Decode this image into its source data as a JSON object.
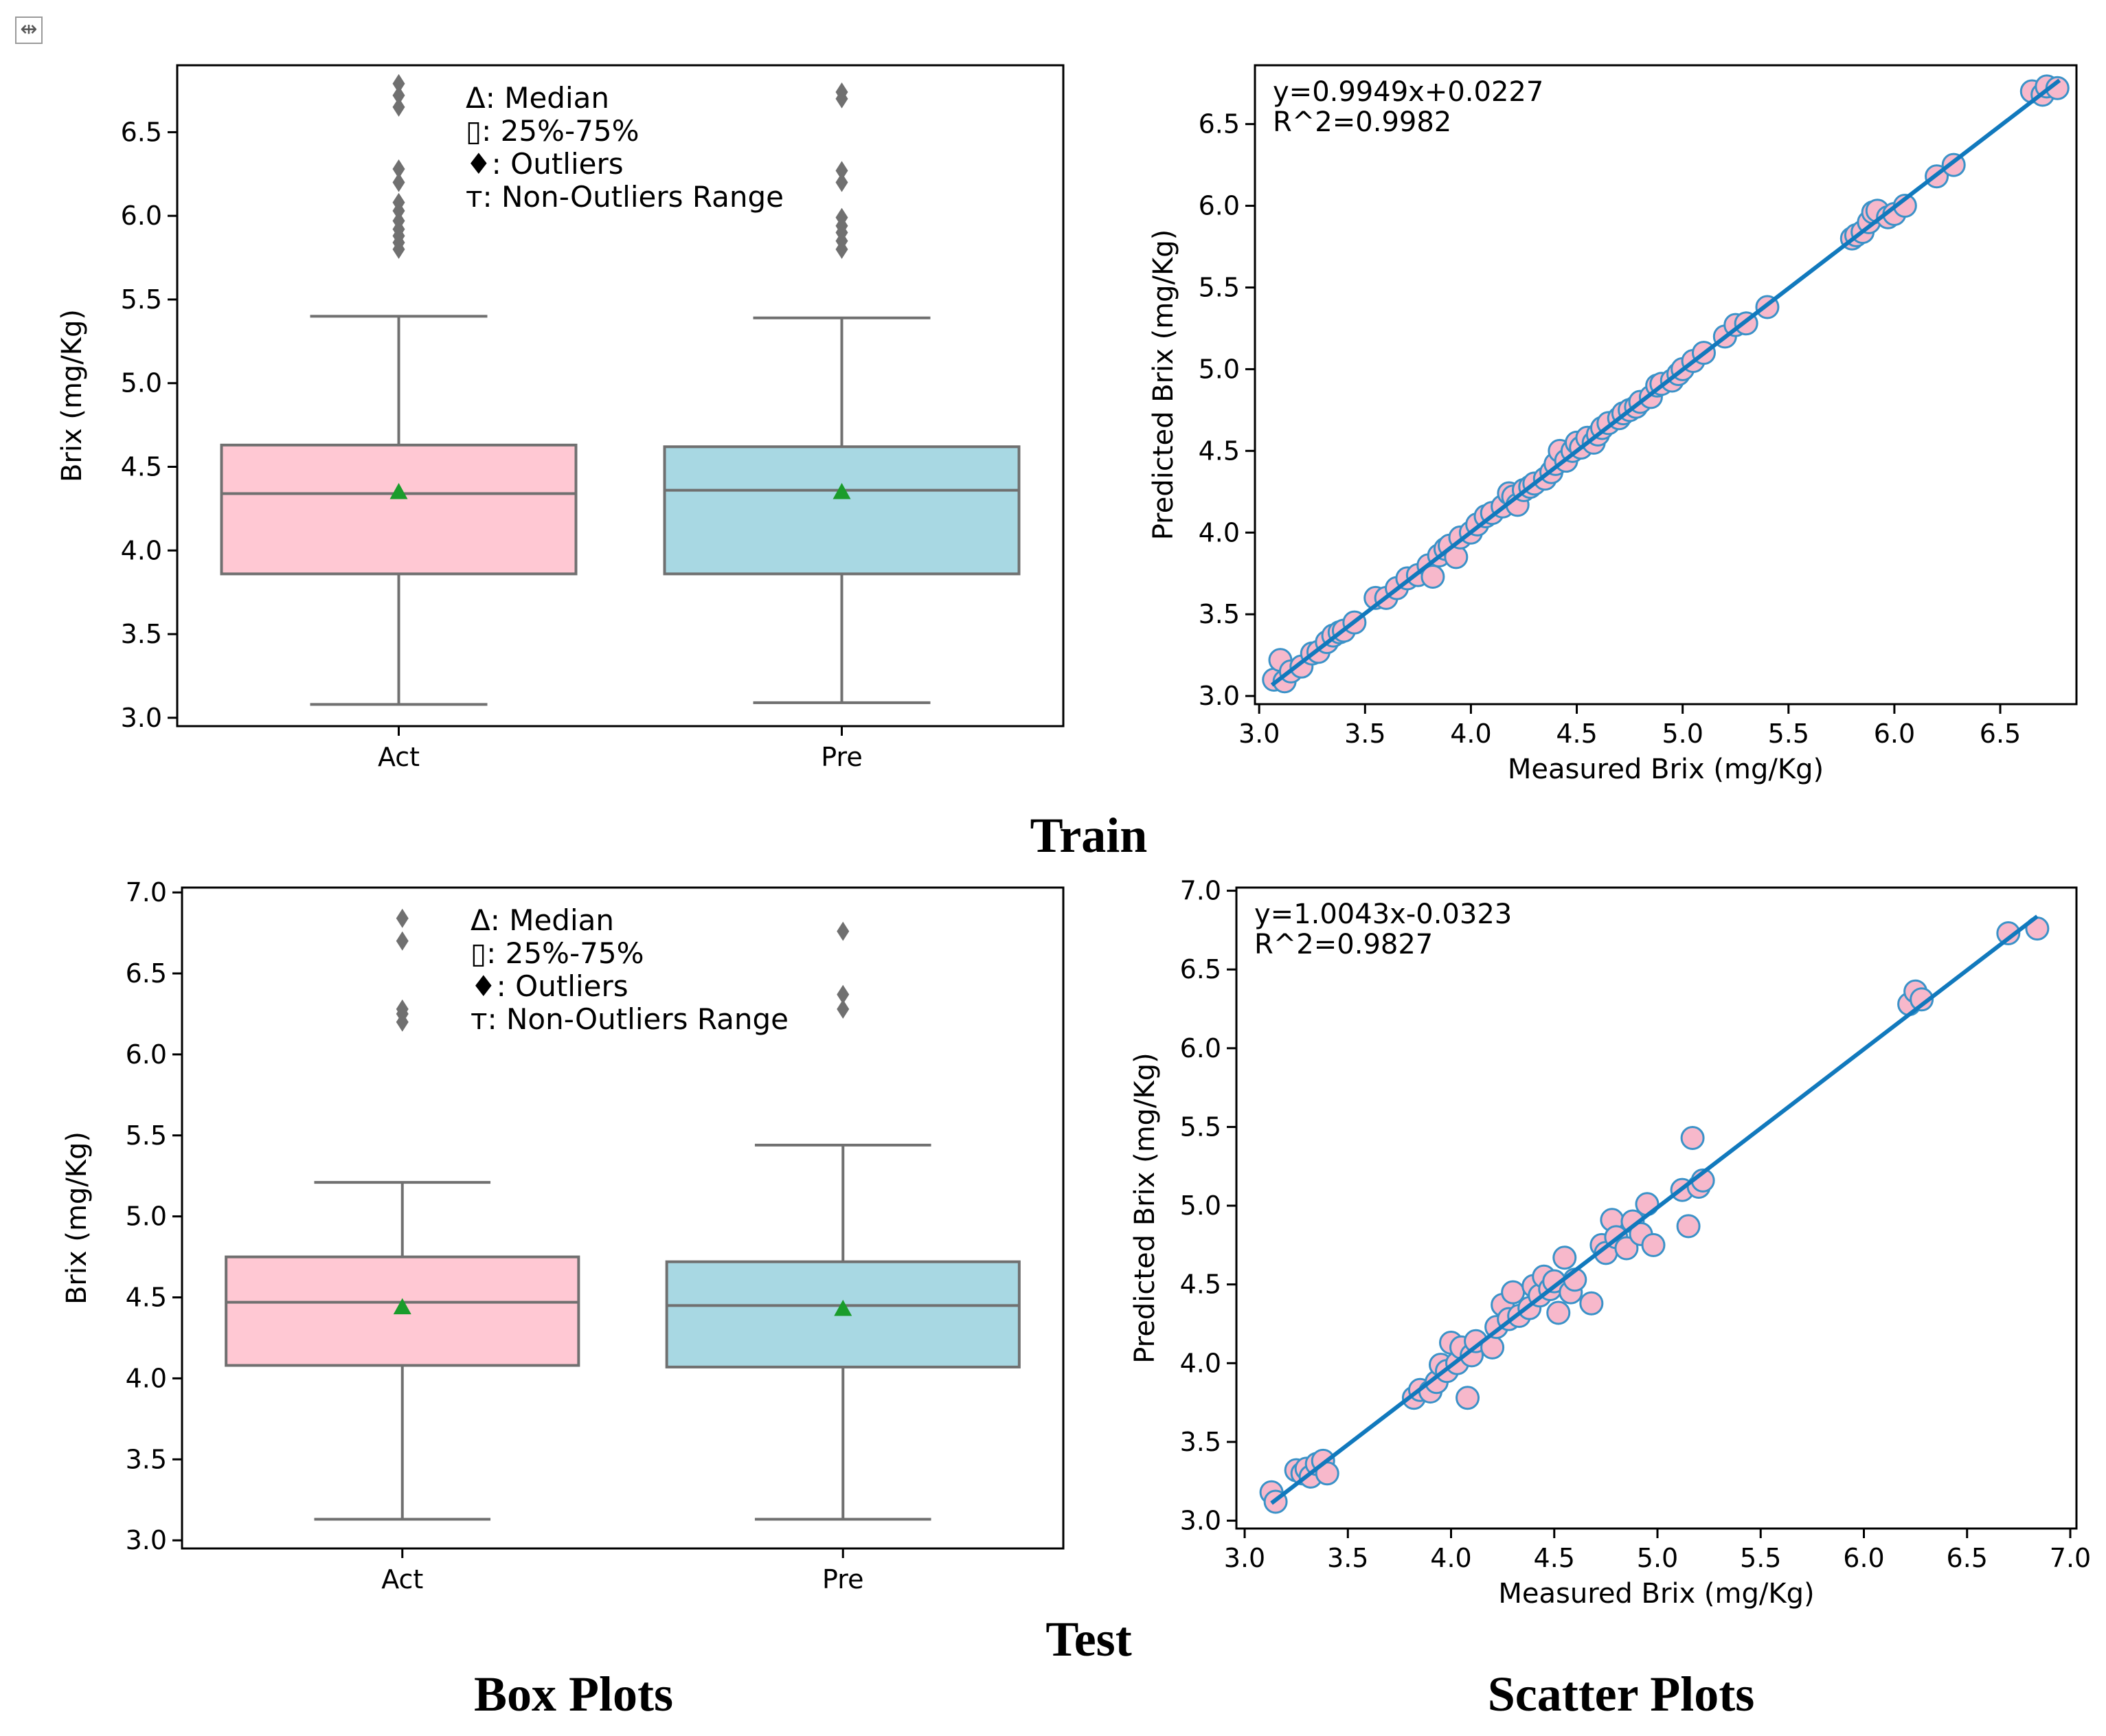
{
  "colors": {
    "act_box": "#ffc8d3",
    "pre_box": "#a8d8e3",
    "box_edge": "#707070",
    "mean_marker": "#1a9c2b",
    "outlier": "#707070",
    "point_fill": "#f7b8cb",
    "point_edge": "#3a92c8",
    "fit_line": "#1179bd"
  },
  "icons": {
    "move_handle": "move-icon"
  },
  "captions": {
    "train": "Train",
    "test": "Test",
    "box_plots": "Box Plots",
    "scatter_plots": "Scatter Plots"
  },
  "chart_data": [
    {
      "id": "train_box",
      "type": "box",
      "ylabel": "Brix (mg/Kg)",
      "ylim": [
        2.95,
        6.9
      ],
      "yticks": [
        "3.0",
        "3.5",
        "4.0",
        "4.5",
        "5.0",
        "5.5",
        "6.0",
        "6.5"
      ],
      "categories": [
        "Act",
        "Pre"
      ],
      "boxes": [
        {
          "label": "Act",
          "whisker_low": 3.08,
          "q1": 3.86,
          "median": 4.34,
          "mean": 4.35,
          "q3": 4.63,
          "whisker_high": 5.4,
          "outliers": [
            5.8,
            5.84,
            5.88,
            5.92,
            5.97,
            6.03,
            6.08,
            6.2,
            6.28,
            6.65,
            6.72,
            6.79
          ]
        },
        {
          "label": "Pre",
          "whisker_low": 3.09,
          "q1": 3.86,
          "median": 4.36,
          "mean": 4.35,
          "q3": 4.62,
          "whisker_high": 5.39,
          "outliers": [
            5.8,
            5.85,
            5.9,
            5.94,
            5.99,
            6.2,
            6.27,
            6.7,
            6.74
          ]
        }
      ],
      "legend": [
        "Δ: Median",
        "▯: 25%-75%",
        "♦: Outliers",
        "ᴛ: Non-Outliers Range"
      ]
    },
    {
      "id": "train_scatter",
      "type": "scatter",
      "xlabel": "Measured Brix (mg/Kg)",
      "ylabel": "Predicted Brix (mg/Kg)",
      "xlim": [
        2.98,
        6.86
      ],
      "ylim": [
        2.95,
        6.86
      ],
      "xticks": [
        "3.0",
        "3.5",
        "4.0",
        "4.5",
        "5.0",
        "5.5",
        "6.0",
        "6.5"
      ],
      "yticks": [
        "3.0",
        "3.5",
        "4.0",
        "4.5",
        "5.0",
        "5.5",
        "6.0",
        "6.5"
      ],
      "fit": {
        "slope": 0.9949,
        "intercept": 0.0227,
        "x_range": [
          3.06,
          6.78
        ]
      },
      "equation": "y=0.9949x+0.0227",
      "r2_text": "R^2=0.9982",
      "points": [
        [
          3.07,
          3.1
        ],
        [
          3.1,
          3.22
        ],
        [
          3.12,
          3.09
        ],
        [
          3.15,
          3.15
        ],
        [
          3.2,
          3.18
        ],
        [
          3.25,
          3.26
        ],
        [
          3.28,
          3.27
        ],
        [
          3.32,
          3.33
        ],
        [
          3.35,
          3.37
        ],
        [
          3.38,
          3.39
        ],
        [
          3.4,
          3.4
        ],
        [
          3.45,
          3.45
        ],
        [
          3.55,
          3.6
        ],
        [
          3.6,
          3.6
        ],
        [
          3.65,
          3.66
        ],
        [
          3.7,
          3.72
        ],
        [
          3.75,
          3.74
        ],
        [
          3.8,
          3.8
        ],
        [
          3.82,
          3.73
        ],
        [
          3.85,
          3.86
        ],
        [
          3.88,
          3.9
        ],
        [
          3.9,
          3.92
        ],
        [
          3.93,
          3.85
        ],
        [
          3.95,
          3.97
        ],
        [
          4.0,
          4.0
        ],
        [
          4.03,
          4.05
        ],
        [
          4.07,
          4.1
        ],
        [
          4.1,
          4.12
        ],
        [
          4.15,
          4.16
        ],
        [
          4.18,
          4.24
        ],
        [
          4.2,
          4.22
        ],
        [
          4.22,
          4.17
        ],
        [
          4.25,
          4.26
        ],
        [
          4.28,
          4.28
        ],
        [
          4.3,
          4.3
        ],
        [
          4.35,
          4.33
        ],
        [
          4.38,
          4.37
        ],
        [
          4.4,
          4.42
        ],
        [
          4.42,
          4.5
        ],
        [
          4.45,
          4.44
        ],
        [
          4.48,
          4.5
        ],
        [
          4.5,
          4.55
        ],
        [
          4.52,
          4.52
        ],
        [
          4.55,
          4.58
        ],
        [
          4.58,
          4.55
        ],
        [
          4.6,
          4.6
        ],
        [
          4.62,
          4.64
        ],
        [
          4.65,
          4.67
        ],
        [
          4.7,
          4.7
        ],
        [
          4.72,
          4.73
        ],
        [
          4.75,
          4.75
        ],
        [
          4.78,
          4.77
        ],
        [
          4.8,
          4.8
        ],
        [
          4.85,
          4.83
        ],
        [
          4.88,
          4.9
        ],
        [
          4.9,
          4.91
        ],
        [
          4.95,
          4.93
        ],
        [
          4.98,
          4.97
        ],
        [
          5.0,
          5.0
        ],
        [
          5.05,
          5.05
        ],
        [
          5.1,
          5.1
        ],
        [
          5.2,
          5.2
        ],
        [
          5.25,
          5.27
        ],
        [
          5.3,
          5.28
        ],
        [
          5.4,
          5.38
        ],
        [
          5.8,
          5.8
        ],
        [
          5.82,
          5.82
        ],
        [
          5.85,
          5.84
        ],
        [
          5.88,
          5.9
        ],
        [
          5.9,
          5.96
        ],
        [
          5.92,
          5.97
        ],
        [
          5.97,
          5.93
        ],
        [
          6.0,
          5.95
        ],
        [
          6.05,
          6.0
        ],
        [
          6.2,
          6.18
        ],
        [
          6.28,
          6.25
        ],
        [
          6.65,
          6.7
        ],
        [
          6.7,
          6.68
        ],
        [
          6.72,
          6.73
        ],
        [
          6.77,
          6.72
        ]
      ]
    },
    {
      "id": "test_box",
      "type": "box",
      "ylabel": "Brix (mg/Kg)",
      "ylim": [
        2.95,
        7.03
      ],
      "yticks": [
        "3.0",
        "3.5",
        "4.0",
        "4.5",
        "5.0",
        "5.5",
        "6.0",
        "6.5",
        "7.0"
      ],
      "categories": [
        "Act",
        "Pre"
      ],
      "boxes": [
        {
          "label": "Act",
          "whisker_low": 3.13,
          "q1": 4.08,
          "median": 4.47,
          "mean": 4.44,
          "q3": 4.75,
          "whisker_high": 5.21,
          "outliers": [
            6.2,
            6.25,
            6.28,
            6.7,
            6.84
          ]
        },
        {
          "label": "Pre",
          "whisker_low": 3.13,
          "q1": 4.07,
          "median": 4.45,
          "mean": 4.43,
          "q3": 4.72,
          "whisker_high": 5.44,
          "outliers": [
            6.28,
            6.37,
            6.76
          ]
        }
      ],
      "legend": [
        "Δ: Median",
        "▯: 25%-75%",
        "♦: Outliers",
        "ᴛ: Non-Outliers Range"
      ]
    },
    {
      "id": "test_scatter",
      "type": "scatter",
      "xlabel": "Measured Brix (mg/Kg)",
      "ylabel": "Predicted Brix (mg/Kg)",
      "xlim": [
        2.96,
        7.03
      ],
      "ylim": [
        2.95,
        7.02
      ],
      "xticks": [
        "3.0",
        "3.5",
        "4.0",
        "4.5",
        "5.0",
        "5.5",
        "6.0",
        "6.5",
        "7.0"
      ],
      "yticks": [
        "3.0",
        "3.5",
        "4.0",
        "4.5",
        "5.0",
        "5.5",
        "6.0",
        "6.5",
        "7.0"
      ],
      "fit": {
        "slope": 1.0043,
        "intercept": -0.0323,
        "x_range": [
          3.13,
          6.84
        ]
      },
      "equation": "y=1.0043x-0.0323",
      "r2_text": "R^2=0.9827",
      "points": [
        [
          3.13,
          3.18
        ],
        [
          3.15,
          3.12
        ],
        [
          3.25,
          3.32
        ],
        [
          3.28,
          3.3
        ],
        [
          3.3,
          3.33
        ],
        [
          3.32,
          3.28
        ],
        [
          3.35,
          3.36
        ],
        [
          3.38,
          3.38
        ],
        [
          3.4,
          3.3
        ],
        [
          3.82,
          3.78
        ],
        [
          3.85,
          3.83
        ],
        [
          3.9,
          3.82
        ],
        [
          3.93,
          3.88
        ],
        [
          3.95,
          3.99
        ],
        [
          3.98,
          3.95
        ],
        [
          4.0,
          4.13
        ],
        [
          4.03,
          4.0
        ],
        [
          4.05,
          4.1
        ],
        [
          4.08,
          3.78
        ],
        [
          4.1,
          4.05
        ],
        [
          4.12,
          4.14
        ],
        [
          4.2,
          4.1
        ],
        [
          4.22,
          4.23
        ],
        [
          4.25,
          4.37
        ],
        [
          4.28,
          4.28
        ],
        [
          4.3,
          4.45
        ],
        [
          4.33,
          4.3
        ],
        [
          4.38,
          4.35
        ],
        [
          4.4,
          4.49
        ],
        [
          4.43,
          4.43
        ],
        [
          4.45,
          4.55
        ],
        [
          4.48,
          4.47
        ],
        [
          4.5,
          4.52
        ],
        [
          4.52,
          4.32
        ],
        [
          4.55,
          4.67
        ],
        [
          4.58,
          4.45
        ],
        [
          4.6,
          4.53
        ],
        [
          4.68,
          4.38
        ],
        [
          4.73,
          4.75
        ],
        [
          4.75,
          4.7
        ],
        [
          4.78,
          4.91
        ],
        [
          4.8,
          4.8
        ],
        [
          4.85,
          4.73
        ],
        [
          4.88,
          4.9
        ],
        [
          4.92,
          4.82
        ],
        [
          4.95,
          5.01
        ],
        [
          4.98,
          4.75
        ],
        [
          5.12,
          5.1
        ],
        [
          5.15,
          4.87
        ],
        [
          5.17,
          5.43
        ],
        [
          5.2,
          5.12
        ],
        [
          5.22,
          5.16
        ],
        [
          6.22,
          6.28
        ],
        [
          6.25,
          6.36
        ],
        [
          6.28,
          6.31
        ],
        [
          6.7,
          6.73
        ],
        [
          6.84,
          6.76
        ]
      ]
    }
  ]
}
